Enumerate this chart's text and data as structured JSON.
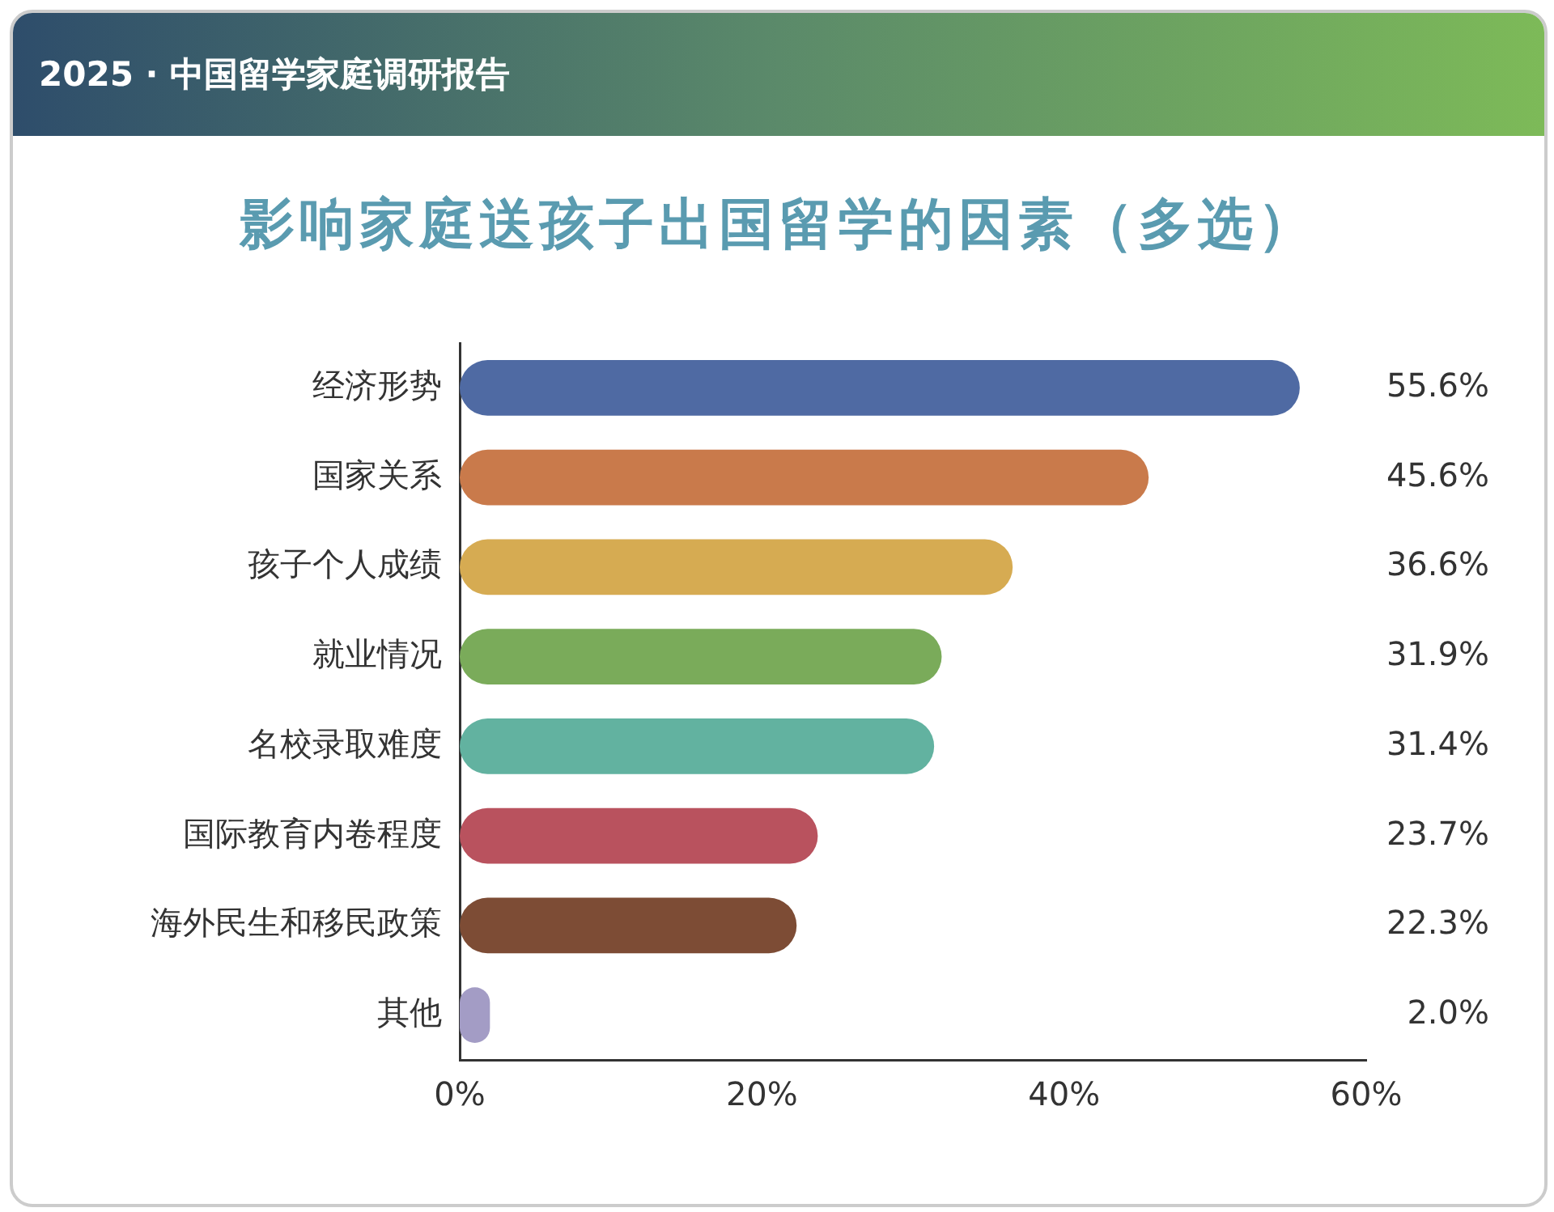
{
  "chart_data": {
    "type": "bar",
    "orientation": "horizontal",
    "title": "影响家庭送孩子出国留学的因素（多选）",
    "subtitle": "2025 · 中国留学家庭调研报告",
    "categories": [
      "经济形势",
      "国家关系",
      "孩子个人成绩",
      "就业情况",
      "名校录取难度",
      "国际教育内卷程度",
      "海外民生和移民政策",
      "其他"
    ],
    "values": [
      55.6,
      45.6,
      36.6,
      31.9,
      31.4,
      23.7,
      22.3,
      2.0
    ],
    "value_labels": [
      "55.6%",
      "45.6%",
      "36.6%",
      "31.9%",
      "31.4%",
      "23.7%",
      "22.3%",
      "2.0%"
    ],
    "colors": [
      "#4f6aa3",
      "#c97a4b",
      "#d6ab52",
      "#7aab5a",
      "#62b2a0",
      "#b9525e",
      "#7d4c35",
      "#a39cc5"
    ],
    "xlim": [
      0,
      60
    ],
    "xticks": [
      {
        "value": 0,
        "label": "0%"
      },
      {
        "value": 20,
        "label": "20%"
      },
      {
        "value": 40,
        "label": "40%"
      },
      {
        "value": 60,
        "label": "60%"
      }
    ],
    "grid": false,
    "legend": false
  }
}
